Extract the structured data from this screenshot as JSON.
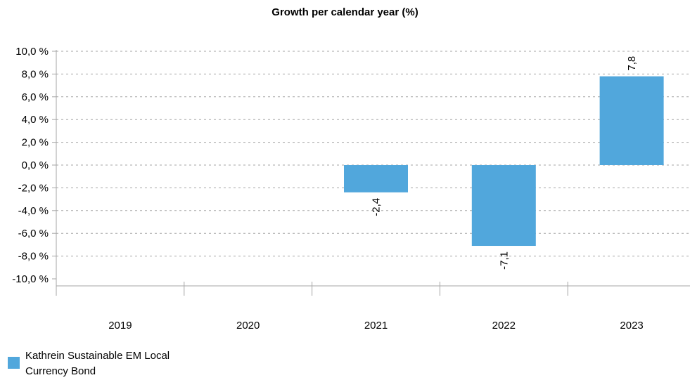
{
  "chart_data": {
    "type": "bar",
    "title": "Growth per calendar year (%)",
    "categories": [
      "2019",
      "2020",
      "2021",
      "2022",
      "2023"
    ],
    "series": [
      {
        "name": "Kathrein Sustainable EM Local Currency Bond",
        "values": [
          null,
          null,
          -2.4,
          -7.1,
          7.8
        ],
        "data_labels": [
          "",
          "",
          "-2,4",
          "-7,1",
          "7,8"
        ],
        "color": "#51a7dc"
      }
    ],
    "y_ticks": [
      10,
      8,
      6,
      4,
      2,
      0,
      -2,
      -4,
      -6,
      -8,
      -10
    ],
    "y_tick_labels": [
      "10,0 %",
      "8,0 %",
      "6,0 %",
      "4,0 %",
      "2,0 %",
      "0,0 %",
      "-2,0 %",
      "-4,0 %",
      "-6,0 %",
      "-8,0 %",
      "-10,0 %"
    ],
    "ylim": [
      -10,
      10
    ],
    "grid": true,
    "legend_position": "bottom-left"
  }
}
